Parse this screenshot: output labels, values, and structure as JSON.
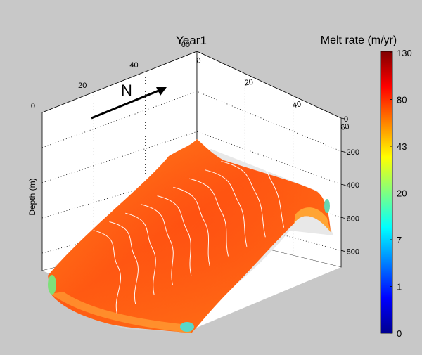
{
  "chart_data": {
    "type": "surface3d",
    "title": "Year1",
    "zlabel": "Depth (m)",
    "colorbar": {
      "title": "Melt rate (m/yr)",
      "tick_labels": [
        "130",
        "80",
        "43",
        "20",
        "7",
        "1",
        "0"
      ],
      "colors": [
        "#00008f",
        "#0000ff",
        "#0080ff",
        "#00ffff",
        "#80ff80",
        "#ffff00",
        "#ff8000",
        "#ff0000",
        "#800000"
      ]
    },
    "x_axis_ticks": [
      "0",
      "20",
      "40",
      "60"
    ],
    "y_axis_ticks": [
      "0",
      "20",
      "40",
      "60"
    ],
    "z_axis_ticks": [
      "0",
      "-200",
      "-400",
      "-600",
      "-800"
    ],
    "z_range": [
      -900,
      0
    ],
    "annotation": {
      "label": "N",
      "description": "north arrow"
    },
    "surface": {
      "dominant_color": "#ff6a1a",
      "contour_color": "#ffffff",
      "contour_count": 10
    },
    "grid": "dotted"
  }
}
